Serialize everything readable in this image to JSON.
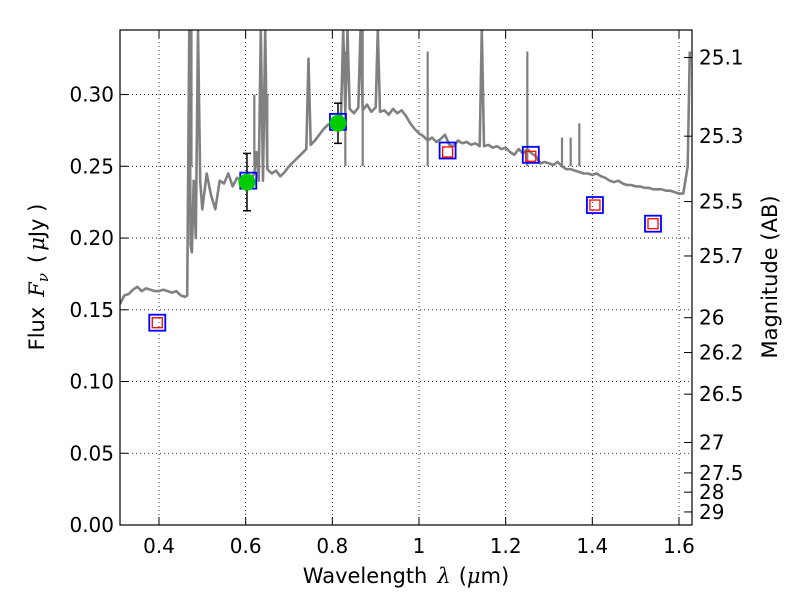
{
  "chart_data": {
    "type": "scatter",
    "xlabel_prefix": "Wavelength",
    "xlabel_symbol": "λ",
    "xlabel_unit_open": "(",
    "xlabel_unit_mu": "μ",
    "xlabel_unit_rest": "m)",
    "ylabel_prefix": "Flux",
    "ylabel_symbol": "F",
    "ylabel_sub": "ν",
    "ylabel_unit_open": "(",
    "ylabel_unit_mu": "μ",
    "ylabel_unit_rest": "Jy )",
    "y2label": "Magnitude (AB)",
    "xlim": [
      0.31,
      1.63
    ],
    "ylim": [
      0.0,
      0.345
    ],
    "grid": "dotted",
    "xticks": [
      0.4,
      0.6,
      0.8,
      1.0,
      1.2,
      1.4,
      1.6
    ],
    "xtick_labels": [
      "0.4",
      "0.6",
      "0.8",
      "1",
      "1.2",
      "1.4",
      "1.6"
    ],
    "yticks": [
      0.0,
      0.05,
      0.1,
      0.15,
      0.2,
      0.25,
      0.3
    ],
    "ytick_labels": [
      "0.00",
      "0.05",
      "0.10",
      "0.15",
      "0.20",
      "0.25",
      "0.30"
    ],
    "mag_ticks": [
      {
        "label": "25.1",
        "flux": 0.3258
      },
      {
        "label": "25.3",
        "flux": 0.271
      },
      {
        "label": "25.5",
        "flux": 0.2254
      },
      {
        "label": "25.7",
        "flux": 0.1875
      },
      {
        "label": "26",
        "flux": 0.1445
      },
      {
        "label": "26.2",
        "flux": 0.1202
      },
      {
        "label": "26.5",
        "flux": 0.0912
      },
      {
        "label": "27",
        "flux": 0.0575
      },
      {
        "label": "27.5",
        "flux": 0.0363
      },
      {
        "label": "28",
        "flux": 0.0229
      },
      {
        "label": "29",
        "flux": 0.0091
      }
    ],
    "series": [
      {
        "name": "model-spectrum",
        "kind": "line",
        "color": "#808080",
        "points": [
          [
            0.31,
            0.154
          ],
          [
            0.32,
            0.16
          ],
          [
            0.33,
            0.161
          ],
          [
            0.34,
            0.164
          ],
          [
            0.35,
            0.166
          ],
          [
            0.36,
            0.163
          ],
          [
            0.37,
            0.165
          ],
          [
            0.38,
            0.164
          ],
          [
            0.39,
            0.163
          ],
          [
            0.4,
            0.163
          ],
          [
            0.41,
            0.164
          ],
          [
            0.42,
            0.163
          ],
          [
            0.43,
            0.162
          ],
          [
            0.44,
            0.163
          ],
          [
            0.45,
            0.16
          ],
          [
            0.46,
            0.159
          ],
          [
            0.465,
            0.16
          ],
          [
            0.47,
            0.345
          ],
          [
            0.473,
            0.195
          ],
          [
            0.476,
            0.19
          ],
          [
            0.48,
            0.24
          ],
          [
            0.485,
            0.2
          ],
          [
            0.49,
            0.345
          ],
          [
            0.495,
            0.24
          ],
          [
            0.5,
            0.22
          ],
          [
            0.51,
            0.245
          ],
          [
            0.52,
            0.23
          ],
          [
            0.53,
            0.22
          ],
          [
            0.54,
            0.24
          ],
          [
            0.55,
            0.238
          ],
          [
            0.56,
            0.245
          ],
          [
            0.57,
            0.236
          ],
          [
            0.58,
            0.242
          ],
          [
            0.59,
            0.24
          ],
          [
            0.6,
            0.238
          ],
          [
            0.61,
            0.24
          ],
          [
            0.62,
            0.245
          ],
          [
            0.625,
            0.26
          ],
          [
            0.63,
            0.24
          ],
          [
            0.635,
            0.345
          ],
          [
            0.64,
            0.24
          ],
          [
            0.645,
            0.345
          ],
          [
            0.65,
            0.248
          ],
          [
            0.66,
            0.245
          ],
          [
            0.67,
            0.247
          ],
          [
            0.68,
            0.243
          ],
          [
            0.69,
            0.246
          ],
          [
            0.7,
            0.25
          ],
          [
            0.71,
            0.253
          ],
          [
            0.72,
            0.256
          ],
          [
            0.73,
            0.259
          ],
          [
            0.74,
            0.262
          ],
          [
            0.745,
            0.325
          ],
          [
            0.75,
            0.265
          ],
          [
            0.76,
            0.268
          ],
          [
            0.77,
            0.272
          ],
          [
            0.78,
            0.276
          ],
          [
            0.79,
            0.279
          ],
          [
            0.8,
            0.28
          ],
          [
            0.81,
            0.282
          ],
          [
            0.82,
            0.285
          ],
          [
            0.825,
            0.345
          ],
          [
            0.83,
            0.288
          ],
          [
            0.835,
            0.345
          ],
          [
            0.84,
            0.29
          ],
          [
            0.85,
            0.287
          ],
          [
            0.86,
            0.291
          ],
          [
            0.865,
            0.345
          ],
          [
            0.87,
            0.289
          ],
          [
            0.88,
            0.293
          ],
          [
            0.89,
            0.288
          ],
          [
            0.9,
            0.291
          ],
          [
            0.905,
            0.345
          ],
          [
            0.91,
            0.288
          ],
          [
            0.92,
            0.289
          ],
          [
            0.93,
            0.286
          ],
          [
            0.94,
            0.29
          ],
          [
            0.95,
            0.287
          ],
          [
            0.96,
            0.289
          ],
          [
            0.97,
            0.285
          ],
          [
            0.98,
            0.28
          ],
          [
            0.99,
            0.276
          ],
          [
            1.0,
            0.273
          ],
          [
            1.01,
            0.271
          ],
          [
            1.02,
            0.268
          ],
          [
            1.03,
            0.27
          ],
          [
            1.04,
            0.267
          ],
          [
            1.05,
            0.269
          ],
          [
            1.06,
            0.272
          ],
          [
            1.07,
            0.265
          ],
          [
            1.08,
            0.264
          ],
          [
            1.09,
            0.268
          ],
          [
            1.1,
            0.266
          ],
          [
            1.11,
            0.267
          ],
          [
            1.12,
            0.265
          ],
          [
            1.13,
            0.266
          ],
          [
            1.14,
            0.264
          ],
          [
            1.145,
            0.345
          ],
          [
            1.15,
            0.264
          ],
          [
            1.16,
            0.265
          ],
          [
            1.17,
            0.263
          ],
          [
            1.18,
            0.264
          ],
          [
            1.19,
            0.262
          ],
          [
            1.2,
            0.263
          ],
          [
            1.21,
            0.26
          ],
          [
            1.22,
            0.258
          ],
          [
            1.23,
            0.262
          ],
          [
            1.24,
            0.259
          ],
          [
            1.25,
            0.262
          ],
          [
            1.26,
            0.259
          ],
          [
            1.27,
            0.257
          ],
          [
            1.28,
            0.252
          ],
          [
            1.29,
            0.253
          ],
          [
            1.3,
            0.252
          ],
          [
            1.31,
            0.251
          ],
          [
            1.32,
            0.253
          ],
          [
            1.33,
            0.25
          ],
          [
            1.34,
            0.248
          ],
          [
            1.35,
            0.248
          ],
          [
            1.36,
            0.247
          ],
          [
            1.37,
            0.246
          ],
          [
            1.38,
            0.245
          ],
          [
            1.39,
            0.245
          ],
          [
            1.4,
            0.244
          ],
          [
            1.41,
            0.245
          ],
          [
            1.42,
            0.243
          ],
          [
            1.43,
            0.242
          ],
          [
            1.44,
            0.24
          ],
          [
            1.45,
            0.239
          ],
          [
            1.46,
            0.24
          ],
          [
            1.47,
            0.238
          ],
          [
            1.48,
            0.237
          ],
          [
            1.49,
            0.237
          ],
          [
            1.5,
            0.236
          ],
          [
            1.51,
            0.236
          ],
          [
            1.52,
            0.235
          ],
          [
            1.53,
            0.235
          ],
          [
            1.54,
            0.234
          ],
          [
            1.55,
            0.234
          ],
          [
            1.56,
            0.234
          ],
          [
            1.57,
            0.233
          ],
          [
            1.58,
            0.233
          ],
          [
            1.59,
            0.232
          ],
          [
            1.6,
            0.231
          ],
          [
            1.61,
            0.231
          ],
          [
            1.62,
            0.25
          ],
          [
            1.625,
            0.33
          ]
        ],
        "spikes": [
          {
            "x": 0.475,
            "y": 0.345
          },
          {
            "x": 0.62,
            "y": 0.3
          },
          {
            "x": 0.65,
            "y": 0.3
          },
          {
            "x": 0.83,
            "y": 0.33
          },
          {
            "x": 0.87,
            "y": 0.345
          },
          {
            "x": 1.02,
            "y": 0.33
          },
          {
            "x": 1.25,
            "y": 0.33
          },
          {
            "x": 1.33,
            "y": 0.27
          },
          {
            "x": 1.35,
            "y": 0.27
          },
          {
            "x": 1.37,
            "y": 0.28
          }
        ]
      },
      {
        "name": "measured-photometry",
        "kind": "filled-circle-errorbar",
        "color": "#00cc00",
        "points": [
          {
            "x": 0.603,
            "y": 0.239,
            "err": 0.02
          },
          {
            "x": 0.813,
            "y": 0.28,
            "err": 0.014
          }
        ]
      },
      {
        "name": "model-photometry",
        "kind": "open-square-blue",
        "color": "#0000ff",
        "points": [
          {
            "x": 0.396,
            "y": 0.141
          },
          {
            "x": 0.606,
            "y": 0.24
          },
          {
            "x": 0.813,
            "y": 0.281
          },
          {
            "x": 1.066,
            "y": 0.261
          },
          {
            "x": 1.258,
            "y": 0.258
          },
          {
            "x": 1.406,
            "y": 0.223
          },
          {
            "x": 1.54,
            "y": 0.21
          }
        ]
      },
      {
        "name": "synthetic-photometry",
        "kind": "open-square-red",
        "color": "#ff0000",
        "points": [
          {
            "x": 0.396,
            "y": 0.141
          },
          {
            "x": 1.066,
            "y": 0.26
          },
          {
            "x": 1.258,
            "y": 0.257
          },
          {
            "x": 1.406,
            "y": 0.223
          },
          {
            "x": 1.54,
            "y": 0.21
          }
        ]
      }
    ]
  }
}
